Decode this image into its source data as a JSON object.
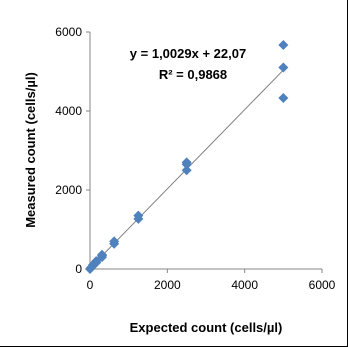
{
  "chart_data": {
    "type": "scatter",
    "title": "",
    "xlabel": "Expected count (cells/µl)",
    "ylabel": "Measured count (cells/µl)",
    "xlim": [
      0,
      6000
    ],
    "ylim": [
      0,
      6000
    ],
    "x_ticks": [
      "0",
      "2000",
      "4000",
      "6000"
    ],
    "y_ticks": [
      "0",
      "2000",
      "4000",
      "6000"
    ],
    "grid": false,
    "legend": "none",
    "marker_color": "#4f81bd",
    "trendline_color": "#7f7f7f",
    "points": [
      {
        "x": 0,
        "y": 0
      },
      {
        "x": 20,
        "y": 30
      },
      {
        "x": 40,
        "y": 45
      },
      {
        "x": 80,
        "y": 90
      },
      {
        "x": 80,
        "y": 110
      },
      {
        "x": 160,
        "y": 160
      },
      {
        "x": 160,
        "y": 200
      },
      {
        "x": 310,
        "y": 300
      },
      {
        "x": 310,
        "y": 340
      },
      {
        "x": 310,
        "y": 360
      },
      {
        "x": 625,
        "y": 640
      },
      {
        "x": 625,
        "y": 700
      },
      {
        "x": 1250,
        "y": 1270
      },
      {
        "x": 1250,
        "y": 1350
      },
      {
        "x": 2500,
        "y": 2500
      },
      {
        "x": 2500,
        "y": 2650
      },
      {
        "x": 2500,
        "y": 2700
      },
      {
        "x": 5000,
        "y": 4330
      },
      {
        "x": 5000,
        "y": 5100
      },
      {
        "x": 5000,
        "y": 5670
      }
    ],
    "trendline": {
      "slope": 1.0029,
      "intercept": 22.07,
      "x_range": [
        0,
        5000
      ],
      "equation": "y = 1,0029x + 22,07",
      "r_squared": "R² = 0,9868"
    }
  }
}
